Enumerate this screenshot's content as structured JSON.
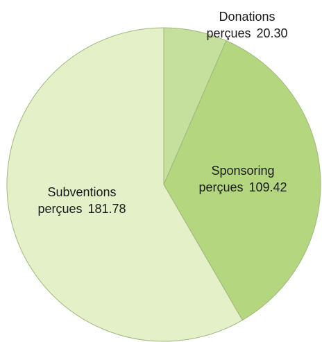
{
  "chart_data": {
    "type": "pie",
    "categories": [
      "Donations perçues",
      "Sponsoring perçues",
      "Subventions perçues"
    ],
    "values": [
      20.3,
      109.42,
      181.78
    ],
    "value_labels": [
      "20.30",
      "109.42",
      "181.78"
    ],
    "colors": [
      "#c4e09c",
      "#b3d67f",
      "#e4f0c8"
    ]
  }
}
